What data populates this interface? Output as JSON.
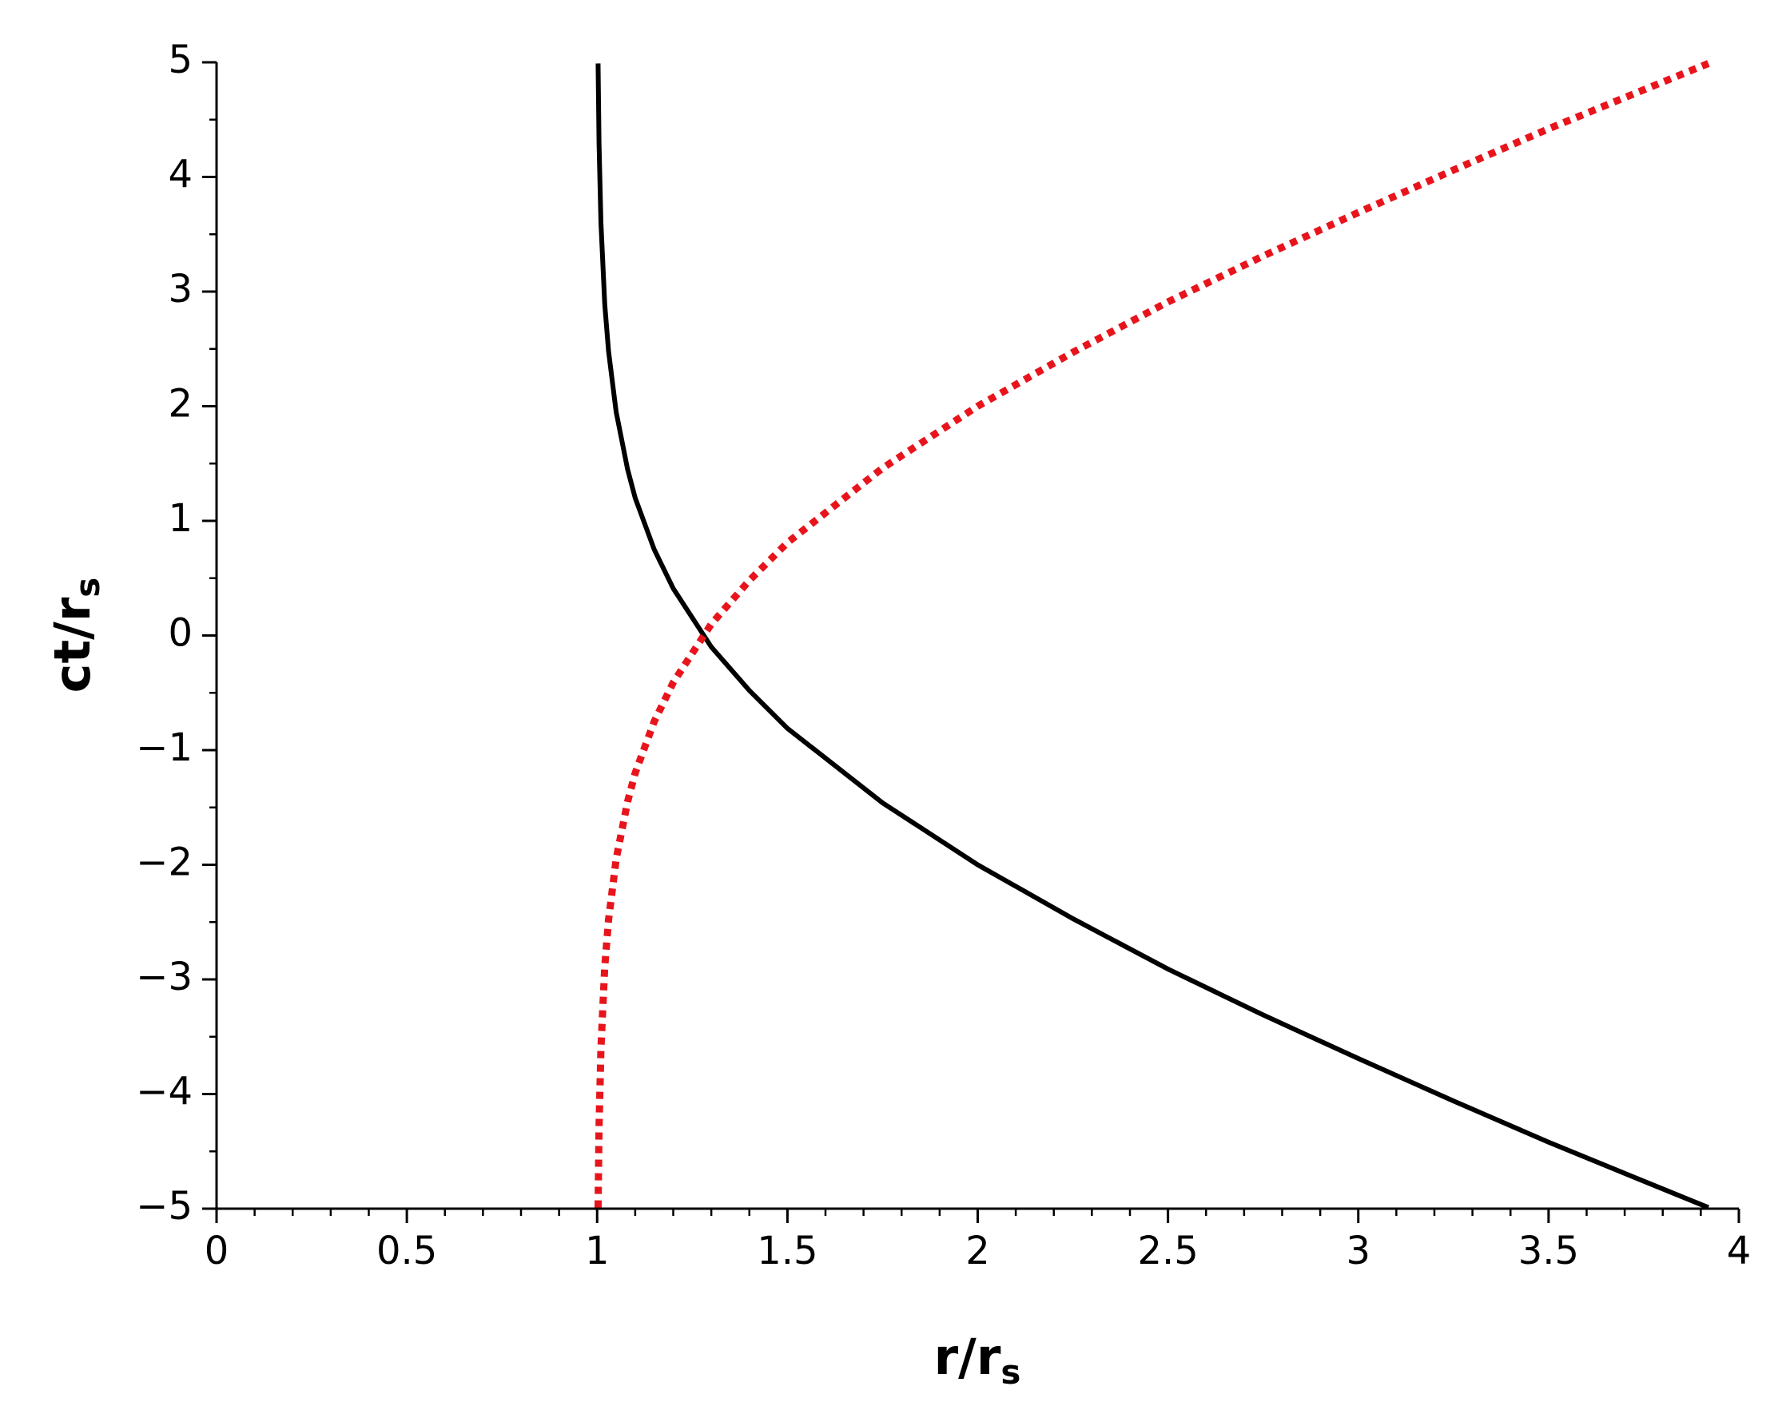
{
  "chart_data": {
    "type": "line",
    "xlabel": [
      "r/r",
      "s"
    ],
    "ylabel": [
      "ct/r",
      "s"
    ],
    "x": [
      1.0025,
      1.005,
      1.01,
      1.02,
      1.03,
      1.05,
      1.08,
      1.1,
      1.15,
      1.2,
      1.3,
      1.4,
      1.5,
      1.75,
      2,
      2.25,
      2.5,
      2.75,
      3,
      3.25,
      3.5,
      3.75,
      3.92
    ],
    "series": [
      {
        "color": "#000000",
        "dash": false,
        "values": [
          4.99,
          4.29,
          3.6,
          2.89,
          2.48,
          1.95,
          1.45,
          1.2,
          0.75,
          0.41,
          -0.1,
          -0.48,
          -0.81,
          -1.46,
          -2,
          -2.47,
          -2.91,
          -3.31,
          -3.69,
          -4.06,
          -4.42,
          -4.76,
          -4.99
        ]
      },
      {
        "color": "#e8141c",
        "dash": true,
        "values": [
          -4.99,
          -4.29,
          -3.6,
          -2.89,
          -2.48,
          -1.95,
          -1.45,
          -1.2,
          -0.75,
          -0.41,
          0.1,
          0.48,
          0.81,
          1.46,
          2,
          2.47,
          2.91,
          3.31,
          3.69,
          4.06,
          4.42,
          4.76,
          4.99
        ]
      }
    ],
    "xlim": [
      0,
      4
    ],
    "ylim": [
      -5,
      5
    ],
    "xticks": [
      0,
      0.5,
      1,
      1.5,
      2,
      2.5,
      3,
      3.5,
      4
    ],
    "yticks": [
      {
        "value": -5,
        "label": "−5"
      },
      {
        "value": -4,
        "label": "−4"
      },
      {
        "value": -3,
        "label": "−3"
      },
      {
        "value": -2,
        "label": "−2"
      },
      {
        "value": -1,
        "label": "−1"
      },
      0,
      1,
      2,
      3,
      4,
      5
    ],
    "xminorticks": [
      0,
      0.1,
      0.2,
      0.3,
      0.4,
      0.5,
      0.6,
      0.7,
      0.8,
      0.9,
      1,
      1.1,
      1.2,
      1.3,
      1.4,
      1.5,
      1.6,
      1.7,
      1.8,
      1.9,
      2,
      2.1,
      2.2,
      2.3,
      2.4,
      2.5,
      2.6,
      2.7,
      2.8,
      2.9,
      3,
      3.1,
      3.2,
      3.3,
      3.4,
      3.5,
      3.6,
      3.7,
      3.8,
      3.9,
      4
    ],
    "yminorticks": [
      -5,
      -4.5,
      -4,
      -3.5,
      -3,
      -2.5,
      -2,
      -1.5,
      -1,
      -0.5,
      0,
      0.5,
      1,
      1.5,
      2,
      2.5,
      3,
      3.5,
      4,
      4.5,
      5
    ],
    "grid": false
  }
}
